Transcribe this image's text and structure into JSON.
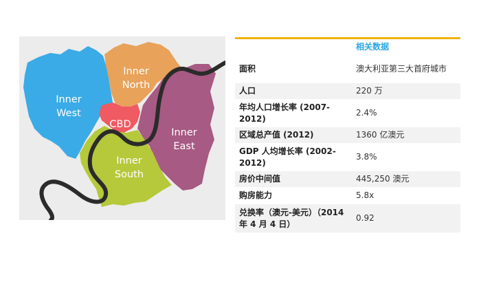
{
  "map": {
    "regions": [
      {
        "id": "inner-west",
        "line1": "Inner",
        "line2": "West",
        "color": "#3aabe6"
      },
      {
        "id": "inner-north",
        "line1": "Inner",
        "line2": "North",
        "color": "#e8a25a"
      },
      {
        "id": "cbd",
        "line1": "CBD",
        "line2": "",
        "color": "#ef5a63"
      },
      {
        "id": "inner-east",
        "line1": "Inner",
        "line2": "East",
        "color": "#a75a83"
      },
      {
        "id": "inner-south",
        "line1": "Inner",
        "line2": "South",
        "color": "#b5c93a"
      }
    ],
    "river_color": "#2b2b2b"
  },
  "table": {
    "header": "相关数据",
    "accent_color": "#f0b30a",
    "rows": [
      {
        "label": "面积",
        "value": "澳大利亚第三大首府城市"
      },
      {
        "label": "人口",
        "value": "220 万"
      },
      {
        "label": "年均人口增长率 (2007-2012)",
        "value": "2.4%"
      },
      {
        "label": "区域总产值 (2012)",
        "value": "1360 亿澳元"
      },
      {
        "label": "GDP 人均增长率 (2002-2012)",
        "value": "3.8%"
      },
      {
        "label": "房价中间值",
        "value": "445,250 澳元"
      },
      {
        "label": "购房能力",
        "value": "5.8x"
      },
      {
        "label": "兑换率（澳元-美元）（2014 年 4 月 4 日）",
        "value": "0.92"
      }
    ]
  }
}
